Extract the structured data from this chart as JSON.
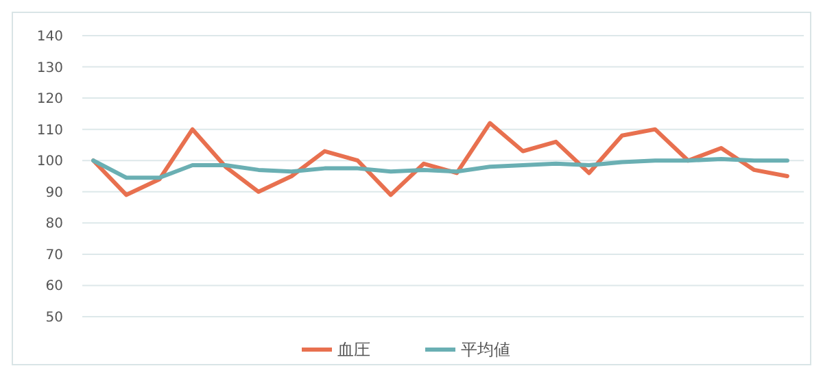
{
  "chart_data": {
    "type": "line",
    "categories": [
      null,
      null,
      null,
      null,
      null,
      null,
      null,
      null,
      null,
      null,
      null,
      null,
      null,
      null,
      null,
      null,
      null,
      null,
      null,
      null,
      null,
      null
    ],
    "series": [
      {
        "name": "血圧",
        "color": "#e8704f",
        "values": [
          100,
          89,
          94,
          110,
          98,
          90,
          95,
          103,
          100,
          89,
          99,
          96,
          112,
          103,
          106,
          96,
          108,
          110,
          100,
          104,
          97,
          95
        ]
      },
      {
        "name": "平均値",
        "color": "#6aafb3",
        "values": [
          100,
          94.5,
          94.5,
          98.5,
          98.5,
          97,
          96.5,
          97.5,
          97.5,
          96.5,
          97,
          96.5,
          98,
          98.5,
          99,
          98.5,
          99.5,
          100,
          100,
          100.5,
          100,
          100
        ]
      }
    ],
    "ylim": [
      50,
      140
    ],
    "yticks": [
      50,
      60,
      70,
      80,
      90,
      100,
      110,
      120,
      130,
      140
    ],
    "grid": "y",
    "legend": "bottom",
    "marker": "none",
    "line_style": "solid"
  }
}
